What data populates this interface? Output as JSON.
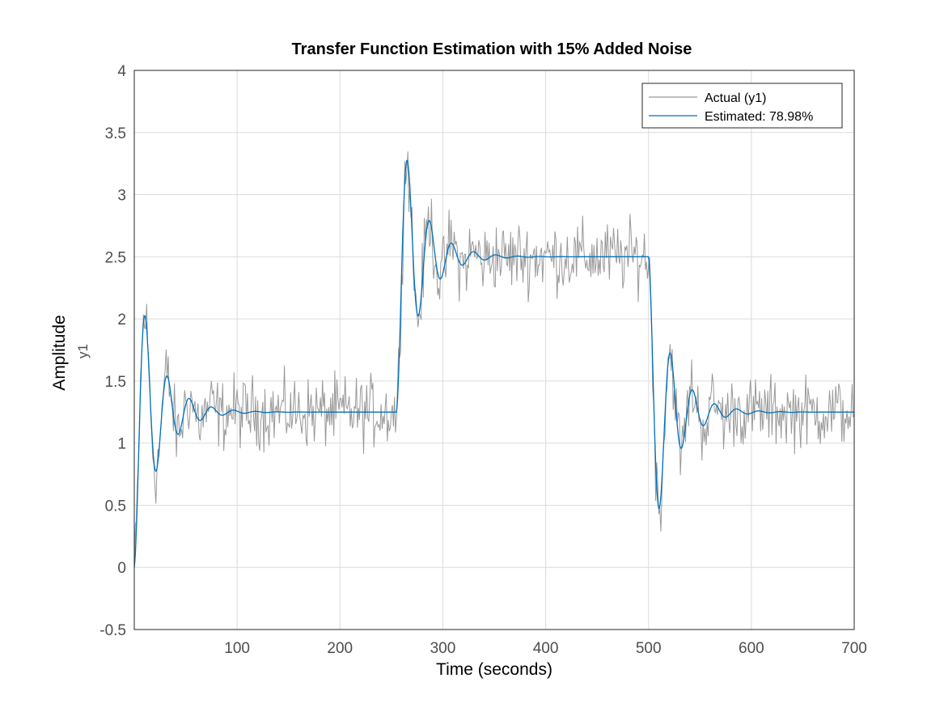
{
  "chart_data": {
    "type": "line",
    "title": "Transfer Function Estimation with 15% Added Noise",
    "xlabel": "Time (seconds)",
    "ylabel": "Amplitude",
    "ylabel_sub": "y1",
    "xlim": [
      0,
      700
    ],
    "ylim": [
      -0.5,
      4
    ],
    "xticks": [
      100,
      200,
      300,
      400,
      500,
      600,
      700
    ],
    "yticks": [
      -0.5,
      0,
      0.5,
      1,
      1.5,
      2,
      2.5,
      3,
      3.5,
      4
    ],
    "grid": true,
    "legend_position": "top-right",
    "series": [
      {
        "name": "Actual (y1)",
        "color": "#999999",
        "description": "noisy response: steps to 1.25 at t=0, 2.5 at t≈255, 1.25 at t≈500, underdamped oscillation plus noise",
        "x": [
          0,
          5,
          10,
          15,
          20,
          25,
          30,
          35,
          40,
          45,
          50,
          55,
          60,
          65,
          70,
          75,
          80,
          85,
          90,
          95,
          100,
          110,
          120,
          130,
          140,
          150,
          160,
          170,
          180,
          190,
          200,
          210,
          220,
          230,
          240,
          250,
          255,
          260,
          263,
          268,
          273,
          278,
          283,
          288,
          293,
          298,
          303,
          308,
          313,
          318,
          323,
          328,
          333,
          338,
          343,
          350,
          360,
          370,
          380,
          390,
          400,
          410,
          420,
          430,
          440,
          450,
          455,
          460,
          470,
          480,
          490,
          500,
          505,
          508,
          511,
          514,
          518,
          522,
          526,
          530,
          534,
          538,
          542,
          546,
          550,
          555,
          560,
          565,
          570,
          575,
          580,
          590,
          600,
          610,
          620,
          630,
          640,
          650,
          660,
          670,
          680,
          690,
          700
        ],
        "values": [
          0,
          1.3,
          2.25,
          1.8,
          0.6,
          0.45,
          1.2,
          1.85,
          1.2,
          0.75,
          1.05,
          1.6,
          1.25,
          1.15,
          1.45,
          1.3,
          1.2,
          1.4,
          1.3,
          1.25,
          1.35,
          1.25,
          1.3,
          1.2,
          1.3,
          1.25,
          1.3,
          1.2,
          1.35,
          1.25,
          1.3,
          1.2,
          1.3,
          1.35,
          1.25,
          1.3,
          1.3,
          2.4,
          3.55,
          3.0,
          1.85,
          2.3,
          3.05,
          2.6,
          2.05,
          2.45,
          2.8,
          2.4,
          2.2,
          2.55,
          2.65,
          2.45,
          2.35,
          2.6,
          2.5,
          2.55,
          2.4,
          2.5,
          2.6,
          2.45,
          2.55,
          2.4,
          2.5,
          2.6,
          2.45,
          2.5,
          3.0,
          2.55,
          2.45,
          2.6,
          2.45,
          2.5,
          2.3,
          1.4,
          0.6,
          0.15,
          0.7,
          1.9,
          1.75,
          1.2,
          0.75,
          1.05,
          1.6,
          1.55,
          1.15,
          0.95,
          1.3,
          1.45,
          1.2,
          1.1,
          1.35,
          1.3,
          1.2,
          1.35,
          1.25,
          1.3,
          1.2,
          1.3,
          1.25,
          1.3,
          1.2,
          1.35,
          1.25
        ]
      },
      {
        "name": "Estimated: 78.98%",
        "color": "#0072bd",
        "description": "model response: steps to 1.25 at t=0, 2.5 at t≈255, 1.25 at t≈500 with damped oscillation"
      }
    ]
  }
}
